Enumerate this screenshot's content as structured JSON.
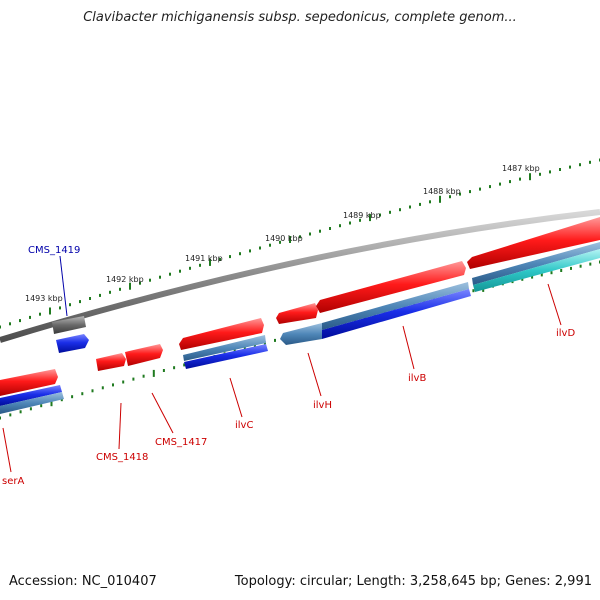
{
  "title": "Clavibacter michiganensis subsp. sepedonicus, complete genom...",
  "footer": {
    "accession": "Accession: NC_010407",
    "summary": "Topology: circular; Length: 3,258,645 bp; Genes: 2,991"
  },
  "colors": {
    "forward_gene": "#e8141b",
    "reverse_gene": "#1a2ee8",
    "reverse_gene_alt": "#4f87b8",
    "reverse_gene_cyan": "#2fc7c7",
    "other_gene": "#606060",
    "backbone": "#8a8a8a",
    "tick": "#1f7a1f",
    "forward_label": "#cc0000",
    "other_label": "#0000aa"
  },
  "kbp_labels": [
    "1487 kbp",
    "1488 kbp",
    "1489 kbp",
    "1490 kbp",
    "1491 kbp",
    "1492 kbp",
    "1493 kbp"
  ],
  "gene_labels": [
    {
      "name": "CMS_1419",
      "strand": "other"
    },
    {
      "name": "serA",
      "strand": "forward"
    },
    {
      "name": "CMS_1418",
      "strand": "forward"
    },
    {
      "name": "CMS_1417",
      "strand": "forward"
    },
    {
      "name": "ilvC",
      "strand": "forward"
    },
    {
      "name": "ilvH",
      "strand": "forward"
    },
    {
      "name": "ilvB",
      "strand": "forward"
    },
    {
      "name": "ilvD",
      "strand": "forward"
    }
  ]
}
